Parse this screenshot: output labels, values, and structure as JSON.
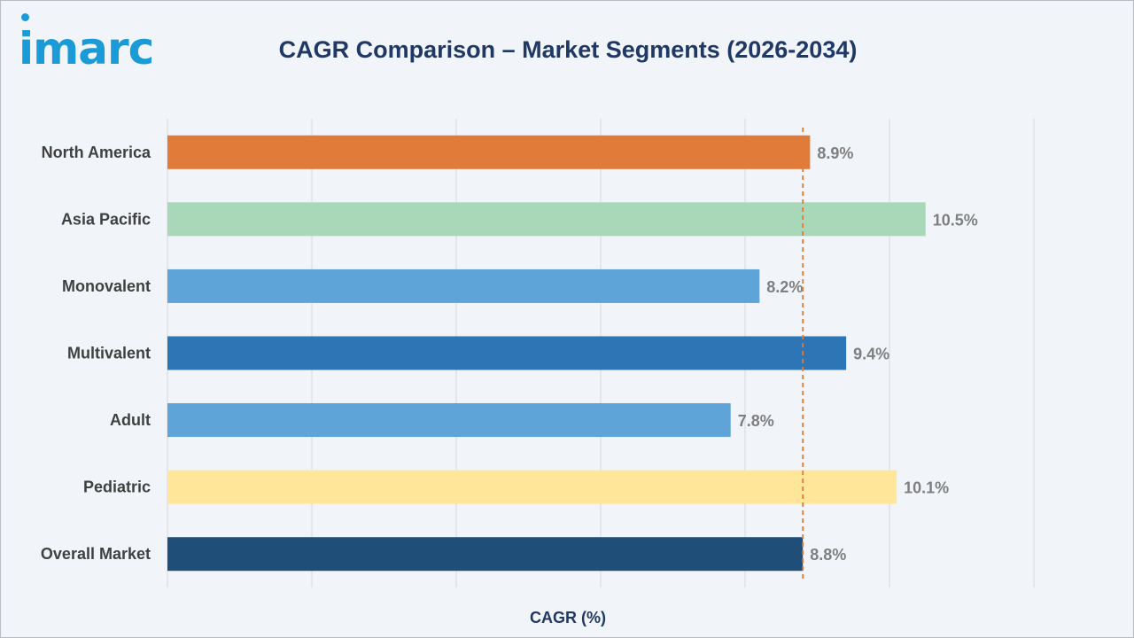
{
  "logo": {
    "text": "imarc"
  },
  "chart_data": {
    "type": "bar",
    "orientation": "horizontal",
    "title": "CAGR Comparison – Market Segments (2026-2034)",
    "xlabel": "CAGR (%)",
    "ylabel": "",
    "categories": [
      "North America",
      "Asia Pacific",
      "Monovalent",
      "Multivalent",
      "Adult",
      "Pediatric",
      "Overall Market"
    ],
    "values": [
      8.9,
      10.5,
      8.2,
      9.4,
      7.8,
      10.1,
      8.8
    ],
    "data_labels": [
      "8.9%",
      "10.5%",
      "8.2%",
      "9.4%",
      "7.8%",
      "10.1%",
      "8.8%"
    ],
    "colors": [
      "#e07b39",
      "#a9d8b8",
      "#5ea4d8",
      "#2e75b6",
      "#5ea4d8",
      "#ffe699",
      "#1f4e79"
    ],
    "xlim": [
      0,
      12
    ],
    "grid": true,
    "reference_line": {
      "value": 8.8,
      "style": "dashed",
      "color": "#e07b39"
    },
    "legend": "none"
  }
}
